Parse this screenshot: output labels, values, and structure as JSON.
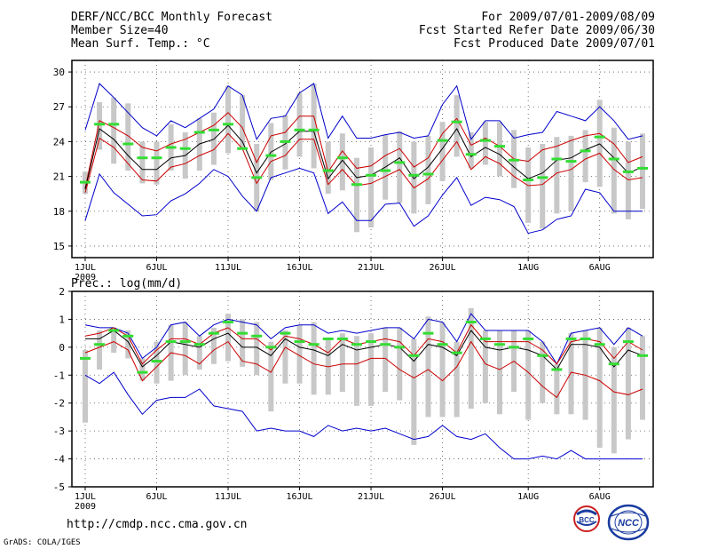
{
  "header": {
    "title": "DERF/NCC/BCC Monthly Forecast",
    "member_size": "Member Size=40",
    "variable_temp": "Mean Surf. Temp.: °C",
    "period": "For 2009/07/01-2009/08/09",
    "started": "Fcst Started Refer Date 2009/06/30",
    "produced": "Fcst Produced Date 2009/07/01"
  },
  "footer": {
    "url": "http://cmdp.ncc.cma.gov.cn",
    "grads": "GrADS: COLA/IGES",
    "logo_bcc_text": "BCC",
    "logo_ncc_text": "NCC"
  },
  "colors": {
    "max_line": "#0000cc",
    "min_line": "#0000cc",
    "spread_line": "#cc0000",
    "mean_line": "#000000",
    "bar": "#c8c8c8",
    "marker": "#33dd33"
  },
  "chart_data": [
    {
      "type": "line",
      "panel": "temperature",
      "title": "Mean Surf. Temp.: °C",
      "ylim": [
        14,
        31
      ],
      "yticks": [
        15,
        18,
        21,
        24,
        27,
        30
      ],
      "x_days": 40,
      "x_tick_days": [
        0,
        5,
        10,
        15,
        20,
        25,
        31,
        36
      ],
      "x_tick_labels": [
        "1JUL",
        "6JUL",
        "11JUL",
        "16JUL",
        "21JUL",
        "26JUL",
        "1AUG",
        "6AUG"
      ],
      "x_sub_label": "2009",
      "grid": true,
      "series": [
        {
          "name": "max",
          "values": [
            25.0,
            29.0,
            27.8,
            26.5,
            25.2,
            24.5,
            25.8,
            25.2,
            26.0,
            26.8,
            28.8,
            28.0,
            24.2,
            26.0,
            26.2,
            28.2,
            29.0,
            24.3,
            26.2,
            24.3,
            24.3,
            24.6,
            24.8,
            24.3,
            24.5,
            27.2,
            28.8,
            24.2,
            25.8,
            25.8,
            24.3,
            24.6,
            24.8,
            26.6,
            26.2,
            25.8,
            27.0,
            25.8,
            24.2,
            24.5
          ]
        },
        {
          "name": "spread_upper",
          "values": [
            20.0,
            25.8,
            25.2,
            24.5,
            23.5,
            23.2,
            23.8,
            24.2,
            24.8,
            25.4,
            26.5,
            25.2,
            22.2,
            24.5,
            24.8,
            26.2,
            26.2,
            21.4,
            23.2,
            21.7,
            21.9,
            22.8,
            23.4,
            21.8,
            22.6,
            24.7,
            26.0,
            23.7,
            24.3,
            23.6,
            22.5,
            22.3,
            23.3,
            23.6,
            24.1,
            24.5,
            24.7,
            23.8,
            22.2,
            22.7
          ]
        },
        {
          "name": "mean",
          "values": [
            19.9,
            25.1,
            24.2,
            22.8,
            21.6,
            21.6,
            22.6,
            22.8,
            23.8,
            24.2,
            25.4,
            24.0,
            21.3,
            23.1,
            23.8,
            24.9,
            24.9,
            20.8,
            22.4,
            20.9,
            21.1,
            21.8,
            22.6,
            20.8,
            21.8,
            23.4,
            25.1,
            22.7,
            23.5,
            22.9,
            21.8,
            20.8,
            21.3,
            22.4,
            22.6,
            23.3,
            23.8,
            22.6,
            21.3,
            21.8
          ]
        },
        {
          "name": "spread_lower",
          "values": [
            19.6,
            24.3,
            23.5,
            22.1,
            20.7,
            20.6,
            21.8,
            22.1,
            22.8,
            23.3,
            24.7,
            23.4,
            20.4,
            22.3,
            22.8,
            24.2,
            24.2,
            20.3,
            21.6,
            20.2,
            20.4,
            21.0,
            21.6,
            20.0,
            20.8,
            22.4,
            24.0,
            21.6,
            22.7,
            22.1,
            21.0,
            20.2,
            20.3,
            21.3,
            21.6,
            22.5,
            23.0,
            21.6,
            20.7,
            20.9
          ]
        },
        {
          "name": "min",
          "values": [
            17.2,
            21.2,
            19.6,
            18.6,
            17.6,
            17.7,
            18.9,
            19.5,
            20.4,
            21.6,
            21.0,
            19.3,
            18.0,
            20.9,
            21.3,
            21.7,
            21.3,
            17.8,
            18.8,
            17.2,
            17.2,
            18.6,
            18.7,
            16.7,
            17.6,
            19.4,
            20.9,
            18.5,
            19.2,
            19.0,
            18.4,
            16.1,
            16.4,
            17.3,
            17.6,
            19.9,
            19.6,
            18.0,
            18.0,
            18.0
          ]
        },
        {
          "name": "bar_top",
          "values": [
            21.4,
            27.4,
            27.8,
            27.3,
            24.0,
            24.0,
            25.5,
            24.8,
            26.0,
            26.5,
            28.8,
            28.0,
            23.8,
            25.6,
            26.3,
            28.2,
            29.0,
            24.0,
            24.7,
            22.6,
            23.5,
            24.6,
            24.9,
            24.0,
            24.5,
            25.7,
            28.0,
            24.8,
            25.7,
            25.7,
            25.0,
            23.5,
            23.8,
            24.4,
            24.5,
            25.0,
            27.6,
            25.2,
            24.0,
            24.7
          ]
        },
        {
          "name": "bar_bottom",
          "values": [
            19.5,
            23.3,
            22.1,
            21.5,
            20.4,
            20.3,
            21.5,
            20.8,
            21.5,
            22.0,
            23.0,
            23.5,
            18.0,
            20.7,
            21.6,
            22.7,
            21.7,
            19.5,
            19.8,
            16.2,
            16.6,
            19.0,
            18.7,
            17.8,
            18.6,
            20.6,
            22.7,
            21.7,
            22.0,
            21.0,
            20.0,
            17.0,
            16.5,
            17.8,
            18.0,
            20.5,
            20.1,
            17.8,
            17.3,
            18.2
          ]
        },
        {
          "name": "marker",
          "values": [
            20.5,
            25.5,
            25.5,
            23.8,
            22.6,
            22.6,
            23.5,
            23.4,
            24.8,
            25.0,
            25.5,
            23.4,
            20.9,
            22.8,
            24.0,
            25.0,
            25.0,
            21.5,
            22.6,
            20.3,
            21.1,
            21.5,
            22.2,
            21.1,
            21.2,
            24.1,
            25.7,
            22.9,
            24.1,
            23.6,
            22.4,
            20.7,
            20.9,
            22.5,
            22.3,
            23.2,
            24.4,
            22.5,
            21.4,
            21.7
          ]
        }
      ]
    },
    {
      "type": "line",
      "panel": "precipitation",
      "title": "Prec.: log(mm/d)",
      "ylim": [
        -5,
        2
      ],
      "yticks": [
        2,
        1,
        0,
        -1,
        -2,
        -3,
        -4,
        -5
      ],
      "x_days": 40,
      "x_tick_days": [
        0,
        5,
        10,
        15,
        20,
        25,
        31,
        36
      ],
      "x_tick_labels": [
        "1JUL",
        "6JUL",
        "11JUL",
        "16JUL",
        "21JUL",
        "26JUL",
        "1AUG",
        "6AUG"
      ],
      "x_sub_label": "2009",
      "grid": true,
      "series": [
        {
          "name": "max",
          "values": [
            0.8,
            0.7,
            0.7,
            0.5,
            -0.4,
            0.0,
            0.8,
            0.9,
            0.4,
            0.8,
            1.0,
            0.9,
            0.8,
            0.3,
            0.7,
            0.8,
            0.8,
            0.5,
            0.6,
            0.5,
            0.6,
            0.7,
            0.7,
            0.3,
            1.0,
            0.9,
            0.2,
            1.2,
            0.6,
            0.6,
            0.6,
            0.6,
            0.2,
            -0.6,
            0.5,
            0.6,
            0.7,
            0.1,
            0.7,
            0.4
          ]
        },
        {
          "name": "spread_upper",
          "values": [
            0.4,
            0.5,
            0.7,
            0.4,
            -0.6,
            -0.1,
            0.3,
            0.3,
            0.1,
            0.5,
            0.7,
            0.3,
            0.3,
            -0.1,
            0.4,
            0.3,
            0.1,
            -0.2,
            0.3,
            0.1,
            0.2,
            0.3,
            0.2,
            -0.3,
            0.3,
            0.2,
            -0.2,
            0.8,
            0.2,
            0.2,
            0.2,
            0.2,
            -0.1,
            -0.6,
            0.2,
            0.3,
            0.2,
            -0.4,
            0.2,
            -0.1
          ]
        },
        {
          "name": "mean",
          "values": [
            0.3,
            0.3,
            0.6,
            0.2,
            -0.7,
            -0.3,
            0.2,
            0.1,
            0.0,
            0.3,
            0.5,
            0.0,
            0.0,
            -0.3,
            0.3,
            0.0,
            -0.1,
            -0.3,
            0.1,
            -0.1,
            0.0,
            0.1,
            0.0,
            -0.5,
            0.1,
            0.0,
            -0.3,
            0.6,
            0.0,
            -0.1,
            0.0,
            -0.1,
            -0.3,
            -0.8,
            0.1,
            0.1,
            0.0,
            -0.7,
            -0.1,
            -0.3
          ]
        },
        {
          "name": "spread_lower",
          "values": [
            -0.2,
            0.0,
            0.2,
            -0.1,
            -1.2,
            -0.7,
            -0.2,
            -0.3,
            -0.6,
            -0.1,
            0.2,
            -0.5,
            -0.6,
            -0.9,
            0.0,
            -0.3,
            -0.6,
            -0.7,
            -0.6,
            -0.6,
            -0.4,
            -0.4,
            -0.8,
            -1.1,
            -0.8,
            -1.2,
            -0.7,
            0.2,
            -0.6,
            -0.8,
            -0.5,
            -0.9,
            -1.4,
            -1.8,
            -0.9,
            -1.0,
            -1.2,
            -1.6,
            -1.7,
            -1.5
          ]
        },
        {
          "name": "min",
          "values": [
            -1.0,
            -1.3,
            -0.9,
            -1.7,
            -2.4,
            -1.9,
            -1.8,
            -1.8,
            -1.5,
            -2.1,
            -2.2,
            -2.3,
            -3.0,
            -2.9,
            -3.0,
            -3.0,
            -3.2,
            -2.8,
            -3.0,
            -2.9,
            -3.0,
            -2.9,
            -3.1,
            -3.3,
            -3.2,
            -2.8,
            -3.2,
            -3.3,
            -3.1,
            -3.6,
            -4.0,
            -4.0,
            -3.9,
            -4.0,
            -3.7,
            -4.0,
            -4.0,
            -4.0,
            -4.0,
            -4.0
          ]
        },
        {
          "name": "bar_top",
          "values": [
            -0.1,
            0.6,
            0.7,
            0.6,
            -0.4,
            0.2,
            0.8,
            0.9,
            0.4,
            0.7,
            1.2,
            1.0,
            0.9,
            0.2,
            0.6,
            0.8,
            0.9,
            0.3,
            0.5,
            0.4,
            0.5,
            0.7,
            0.7,
            0.3,
            1.1,
            0.9,
            0.2,
            1.4,
            0.6,
            0.6,
            0.6,
            0.6,
            0.2,
            -0.6,
            0.5,
            0.6,
            0.7,
            0.0,
            0.7,
            0.4
          ]
        },
        {
          "name": "bar_bottom",
          "values": [
            -2.7,
            -0.8,
            -0.2,
            -0.4,
            -1.2,
            -1.3,
            -1.2,
            -1.0,
            -0.8,
            -0.6,
            -0.5,
            -0.7,
            -1.0,
            -2.3,
            -1.3,
            -1.3,
            -1.7,
            -1.7,
            -1.6,
            -2.1,
            -2.1,
            -1.6,
            -1.9,
            -3.5,
            -2.5,
            -2.5,
            -2.5,
            -2.2,
            -2.0,
            -2.4,
            -1.6,
            -2.6,
            -2.0,
            -2.4,
            -2.4,
            -2.6,
            -3.6,
            -3.8,
            -3.3,
            -2.6
          ]
        },
        {
          "name": "marker",
          "values": [
            -0.4,
            0.1,
            0.6,
            0.4,
            -0.9,
            -0.5,
            0.2,
            0.2,
            0.1,
            0.5,
            0.9,
            0.5,
            0.4,
            0.0,
            0.5,
            0.2,
            0.1,
            0.3,
            0.3,
            0.1,
            0.2,
            0.1,
            0.0,
            -0.3,
            0.5,
            0.1,
            -0.2,
            0.9,
            0.3,
            0.1,
            0.0,
            0.3,
            -0.3,
            -0.8,
            0.3,
            0.3,
            0.1,
            -0.6,
            0.2,
            -0.3
          ]
        }
      ]
    }
  ]
}
